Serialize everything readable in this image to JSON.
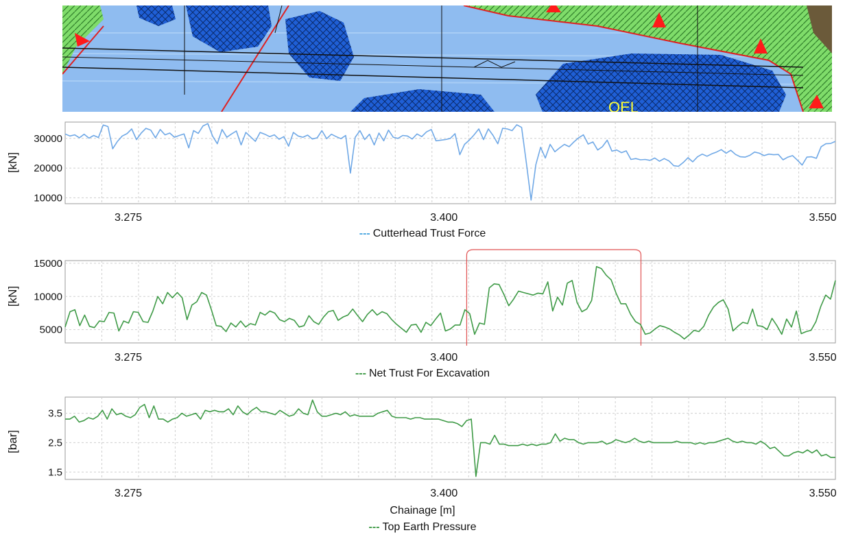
{
  "geology_strip": {
    "label": "OEL",
    "colors": {
      "water": "#8fbcf0",
      "blue_zone": "#1f5fd6",
      "green_zone": "#7fdc6a",
      "fault": "#e02020",
      "triangle": "#ff1a1a"
    }
  },
  "chart_data": [
    {
      "type": "line",
      "legend": "Cutterhead Trust Force",
      "legend_marker": "---",
      "ylabel": "[kN]",
      "xlabel": "",
      "x_ticks": [
        "3.275",
        "3.400",
        "3.550"
      ],
      "x_tick_values": [
        3.275,
        3.4,
        3.55
      ],
      "xlim": [
        3.25,
        3.555
      ],
      "y_ticks": [
        "10000",
        "20000",
        "30000"
      ],
      "y_tick_values": [
        10000,
        20000,
        30000
      ],
      "ylim": [
        8000,
        35500
      ],
      "grid": true,
      "color": "#6fa8e6",
      "series": [
        {
          "values": [
            31500,
            30800,
            31200,
            30200,
            31400,
            30100,
            31000,
            30300,
            34500,
            34000,
            26500,
            29000,
            30800,
            31600,
            33200,
            29600,
            31800,
            33400,
            32800,
            30200,
            33000,
            31200,
            31800,
            30400,
            31000,
            31500,
            26800,
            32600,
            31700,
            34200,
            35000,
            30800,
            28200,
            33000,
            30400,
            31500,
            32500,
            27800,
            32000,
            30500,
            29000,
            32000,
            31400,
            30600,
            31200,
            29700,
            30600,
            27400,
            32000,
            30800,
            30400,
            31100,
            29800,
            30200,
            32600,
            29900,
            31400,
            30600,
            29900,
            31000,
            18300,
            30400,
            32600,
            29600,
            31400,
            27800,
            31800,
            29200,
            32800,
            30400,
            30000,
            31000,
            30800,
            29800,
            31500,
            30600,
            32200,
            33000,
            29200,
            29400,
            29600,
            30000,
            31600,
            24500,
            28000,
            29400,
            31200,
            33200,
            29600,
            33200,
            31000,
            28200,
            33400,
            33200,
            32600,
            34600,
            33700,
            21800,
            9200,
            21200,
            27000,
            23400,
            28000,
            25500,
            26800,
            28000,
            27200,
            28800,
            30200,
            31200,
            28100,
            28800,
            26100,
            27200,
            29400,
            25700,
            26100,
            25200,
            25800,
            22900,
            23200,
            22800,
            22900,
            22600,
            23400,
            22300,
            23200,
            22400,
            20800,
            20600,
            21900,
            23500,
            22100,
            23800,
            24700,
            24000,
            24800,
            25400,
            26200,
            25000,
            26000,
            24600,
            23800,
            23700,
            24300,
            25400,
            25000,
            24200,
            24700,
            24500,
            24600,
            22800,
            23700,
            24200,
            22700,
            21000,
            23700,
            23800,
            23300,
            27200,
            28200,
            28300,
            29000
          ]
        }
      ]
    },
    {
      "type": "line",
      "legend": "Net Trust For Excavation",
      "legend_marker": "---",
      "ylabel": "[kN]",
      "xlabel": "",
      "x_ticks": [
        "3.275",
        "3.400",
        "3.550"
      ],
      "x_tick_values": [
        3.275,
        3.4,
        3.55
      ],
      "xlim": [
        3.25,
        3.555
      ],
      "y_ticks": [
        "5000",
        "10000",
        "15000"
      ],
      "y_tick_values": [
        5000,
        10000,
        15000
      ],
      "ylim": [
        3000,
        15400
      ],
      "grid": true,
      "color": "#3e9a46",
      "highlight_range": [
        3.409,
        3.478
      ],
      "highlight_color": "#e05050",
      "series": [
        {
          "values": [
            5400,
            7700,
            8000,
            5600,
            7200,
            5500,
            5300,
            6300,
            6200,
            7600,
            7500,
            4800,
            6300,
            6000,
            7700,
            7600,
            6200,
            6100,
            7800,
            10000,
            8900,
            10600,
            9800,
            10600,
            9800,
            6500,
            8700,
            9200,
            10600,
            10200,
            8000,
            5600,
            5500,
            4700,
            6000,
            5400,
            6300,
            5400,
            5900,
            5700,
            7600,
            7200,
            7800,
            7500,
            6500,
            6200,
            6700,
            6400,
            5400,
            5600,
            7100,
            6200,
            5800,
            6900,
            7700,
            7900,
            6400,
            6900,
            7200,
            8100,
            7100,
            6200,
            7300,
            8000,
            7200,
            7700,
            7400,
            6500,
            5800,
            5200,
            4600,
            5700,
            5800,
            4600,
            6100,
            5600,
            6600,
            7500,
            4800,
            5100,
            5700,
            5700,
            8000,
            7400,
            4300,
            6000,
            5800,
            11300,
            11900,
            11800,
            10300,
            8600,
            9600,
            10800,
            10600,
            10400,
            10200,
            10500,
            10400,
            12200,
            7800,
            9900,
            8700,
            12000,
            12400,
            9100,
            7700,
            8100,
            9400,
            14500,
            14200,
            13200,
            12500,
            10500,
            8900,
            8900,
            7300,
            6200,
            5800,
            4300,
            4500,
            5100,
            5600,
            5400,
            5100,
            4600,
            4200,
            3600,
            4200,
            4900,
            4700,
            5500,
            7200,
            8400,
            9100,
            9500,
            8100,
            4800,
            5500,
            6100,
            5900,
            8100,
            5600,
            5500,
            5000,
            6700,
            5600,
            4300,
            6600,
            5400,
            7800,
            4400,
            4700,
            4900,
            6200,
            8500,
            10200,
            9600,
            12400
          ]
        }
      ]
    },
    {
      "type": "line",
      "legend": "Top Earth Pressure",
      "legend_marker": "---",
      "ylabel": "[bar]",
      "xlabel": "Chainage [m]",
      "x_ticks": [
        "3.275",
        "3.400",
        "3.550"
      ],
      "x_tick_values": [
        3.275,
        3.4,
        3.55
      ],
      "xlim": [
        3.25,
        3.555
      ],
      "y_ticks": [
        "1.5",
        "2.5",
        "3.5"
      ],
      "y_tick_values": [
        1.5,
        2.5,
        3.5
      ],
      "ylim": [
        1.25,
        4.05
      ],
      "grid": true,
      "color": "#3e9a46",
      "series": [
        {
          "values": [
            3.3,
            3.3,
            3.4,
            3.2,
            3.25,
            3.35,
            3.3,
            3.4,
            3.6,
            3.3,
            3.65,
            3.45,
            3.5,
            3.4,
            3.35,
            3.45,
            3.7,
            3.8,
            3.35,
            3.75,
            3.3,
            3.3,
            3.2,
            3.3,
            3.35,
            3.5,
            3.4,
            3.45,
            3.5,
            3.3,
            3.6,
            3.55,
            3.6,
            3.55,
            3.55,
            3.65,
            3.45,
            3.75,
            3.55,
            3.45,
            3.6,
            3.7,
            3.55,
            3.55,
            3.5,
            3.45,
            3.6,
            3.5,
            3.4,
            3.45,
            3.65,
            3.5,
            3.45,
            3.95,
            3.55,
            3.4,
            3.4,
            3.45,
            3.5,
            3.45,
            3.55,
            3.4,
            3.45,
            3.4,
            3.4,
            3.4,
            3.4,
            3.5,
            3.55,
            3.6,
            3.4,
            3.35,
            3.35,
            3.35,
            3.3,
            3.35,
            3.35,
            3.3,
            3.3,
            3.3,
            3.3,
            3.25,
            3.2,
            3.2,
            3.15,
            3.05,
            3.25,
            3.3,
            1.35,
            2.5,
            2.5,
            2.45,
            2.75,
            2.45,
            2.45,
            2.4,
            2.4,
            2.4,
            2.45,
            2.4,
            2.45,
            2.4,
            2.45,
            2.45,
            2.5,
            2.8,
            2.55,
            2.65,
            2.6,
            2.6,
            2.5,
            2.45,
            2.5,
            2.5,
            2.5,
            2.55,
            2.45,
            2.5,
            2.6,
            2.55,
            2.5,
            2.55,
            2.65,
            2.55,
            2.5,
            2.55,
            2.5,
            2.5,
            2.5,
            2.5,
            2.5,
            2.55,
            2.5,
            2.5,
            2.5,
            2.45,
            2.5,
            2.45,
            2.5,
            2.5,
            2.55,
            2.6,
            2.65,
            2.55,
            2.5,
            2.55,
            2.5,
            2.5,
            2.45,
            2.55,
            2.45,
            2.3,
            2.35,
            2.2,
            2.05,
            2.05,
            2.15,
            2.2,
            2.15,
            2.25,
            2.15,
            2.25,
            2.05,
            2.1,
            2.0,
            2.0
          ]
        }
      ]
    }
  ]
}
